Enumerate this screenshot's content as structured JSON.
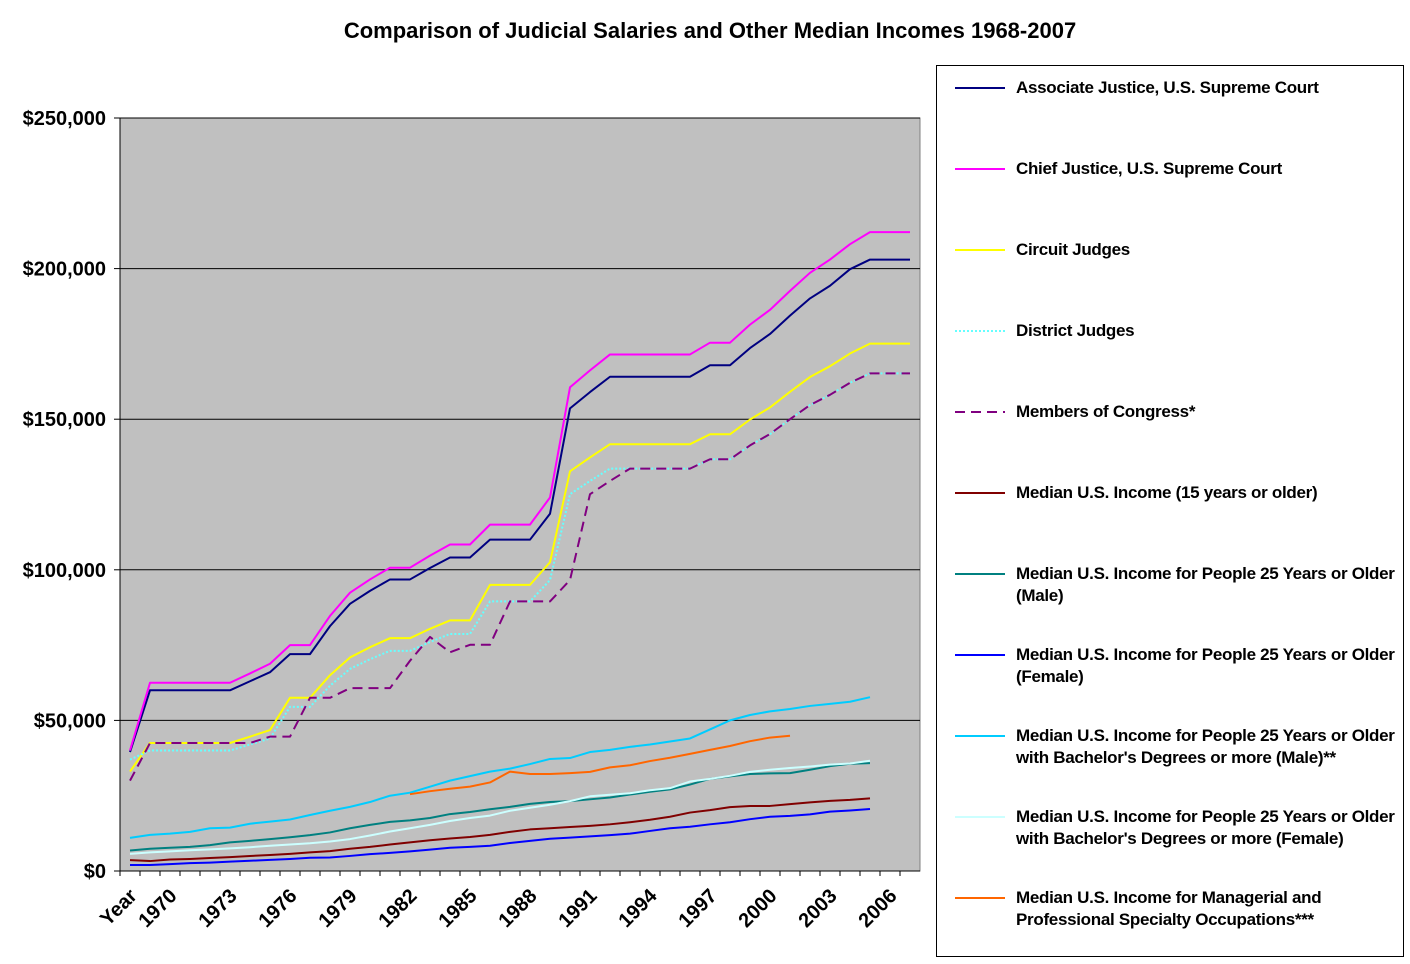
{
  "chart_data": {
    "type": "line",
    "title": "Comparison of Judicial Salaries and Other Median Incomes 1968-2007",
    "categories": [
      "Year",
      null,
      "1970",
      null,
      null,
      "1973",
      null,
      null,
      "1976",
      null,
      null,
      "1979",
      null,
      null,
      "1982",
      null,
      null,
      "1985",
      null,
      null,
      "1988",
      null,
      null,
      "1991",
      null,
      null,
      "1994",
      null,
      null,
      "1997",
      null,
      null,
      "2000",
      null,
      null,
      "2003",
      null,
      null,
      "2006",
      null
    ],
    "ylim": [
      0,
      250000
    ],
    "yticks": [
      {
        "value": 0,
        "label": "$0"
      },
      {
        "value": 50000,
        "label": "$50,000"
      },
      {
        "value": 100000,
        "label": "$100,000"
      },
      {
        "value": 150000,
        "label": "$150,000"
      },
      {
        "value": 200000,
        "label": "$200,000"
      },
      {
        "value": 250000,
        "label": "$250,000"
      }
    ],
    "grid": true,
    "legend": "right",
    "series": [
      {
        "name": "Associate Justice, U.S. Supreme Court",
        "color": "#000080",
        "style": "solid",
        "values": [
          39500,
          60000,
          60000,
          60000,
          60000,
          60000,
          63000,
          66000,
          72000,
          72000,
          81300,
          88700,
          93000,
          96800,
          96800,
          100600,
          104100,
          104100,
          110000,
          110000,
          110000,
          118600,
          153600,
          159000,
          164100,
          164100,
          164100,
          164100,
          164100,
          167900,
          167900,
          173600,
          178300,
          184400,
          190100,
          194300,
          199800,
          203000,
          203000,
          203000
        ]
      },
      {
        "name": "Chief Justice, U.S. Supreme Court",
        "color": "#ff00ff",
        "style": "solid",
        "values": [
          40000,
          62500,
          62500,
          62500,
          62500,
          62500,
          65600,
          68800,
          75000,
          75000,
          84700,
          92400,
          96800,
          100700,
          100700,
          104700,
          108400,
          108400,
          115000,
          115000,
          115000,
          124000,
          160600,
          166200,
          171500,
          171500,
          171500,
          171500,
          171500,
          175400,
          175400,
          181400,
          186300,
          192600,
          198600,
          203000,
          208100,
          212100,
          212100,
          212100
        ]
      },
      {
        "name": "Circuit Judges",
        "color": "#ffff00",
        "style": "solid",
        "values": [
          33000,
          42500,
          42500,
          42500,
          42500,
          42500,
          44600,
          46800,
          57500,
          57500,
          65000,
          70900,
          74300,
          77300,
          77300,
          80400,
          83200,
          83200,
          95000,
          95000,
          95000,
          102500,
          132700,
          137300,
          141700,
          141700,
          141700,
          141700,
          141700,
          145000,
          145000,
          149900,
          153900,
          159100,
          164000,
          167600,
          171800,
          175100,
          175100,
          175100
        ]
      },
      {
        "name": "District Judges",
        "color": "#66ffff",
        "style": "dotted",
        "values": [
          37000,
          40000,
          40000,
          40000,
          40000,
          40000,
          42000,
          44000,
          54500,
          54500,
          61500,
          67100,
          70300,
          73100,
          73100,
          76000,
          78700,
          78700,
          89500,
          89500,
          89500,
          96600,
          125100,
          129500,
          133600,
          133600,
          133600,
          133600,
          133600,
          136700,
          136700,
          141300,
          145000,
          150000,
          154700,
          158100,
          162100,
          165200,
          165200,
          165200
        ]
      },
      {
        "name": "Members of Congress*",
        "color": "#800080",
        "style": "dashed",
        "values": [
          30000,
          42500,
          42500,
          42500,
          42500,
          42500,
          42500,
          44600,
          44600,
          57500,
          57500,
          60700,
          60700,
          60700,
          69800,
          77700,
          72600,
          75100,
          75100,
          89500,
          89500,
          89500,
          96600,
          125100,
          129500,
          133600,
          133600,
          133600,
          133600,
          136700,
          136700,
          141300,
          145100,
          150000,
          154700,
          158100,
          162100,
          165200,
          165200,
          165200
        ]
      },
      {
        "name": "Median U.S. Income (15 years or older)",
        "color": "#800000",
        "style": "solid",
        "values": [
          3600,
          3300,
          3800,
          4000,
          4300,
          4600,
          5000,
          5300,
          5700,
          6200,
          6600,
          7400,
          8000,
          8800,
          9500,
          10200,
          10800,
          11300,
          12000,
          13000,
          13800,
          14200,
          14600,
          15000,
          15500,
          16200,
          17000,
          18000,
          19400,
          20200,
          21200,
          21600,
          21600,
          22200,
          22800,
          23300,
          23600,
          24100,
          null,
          null
        ]
      },
      {
        "name": "Median U.S. Income for People 25 Years or Older (Male)",
        "color": "#008080",
        "style": "solid",
        "values": [
          6800,
          7400,
          7700,
          8000,
          8600,
          9500,
          10000,
          10600,
          11200,
          11900,
          12800,
          14200,
          15300,
          16300,
          16800,
          17600,
          18900,
          19600,
          20500,
          21300,
          22300,
          22900,
          23200,
          23800,
          24400,
          25400,
          26300,
          27100,
          28700,
          30600,
          31400,
          32200,
          32400,
          32500,
          33600,
          34800,
          35600,
          35800,
          null,
          null
        ]
      },
      {
        "name": "Median U.S. Income for People 25 Years or Older (Female)",
        "color": "#0000ff",
        "style": "solid",
        "values": [
          2000,
          2000,
          2300,
          2600,
          2800,
          3100,
          3400,
          3700,
          4000,
          4400,
          4500,
          5000,
          5600,
          6000,
          6500,
          7100,
          7700,
          8000,
          8400,
          9300,
          10000,
          10700,
          11100,
          11500,
          11900,
          12400,
          13300,
          14200,
          14700,
          15500,
          16200,
          17200,
          18000,
          18300,
          18800,
          19700,
          20100,
          20600,
          null,
          null
        ]
      },
      {
        "name": "Median U.S. Income for People 25 Years or Older with Bachelor's Degrees or more (Male)**",
        "color": "#00ccff",
        "style": "solid",
        "values": [
          11000,
          12000,
          12400,
          13000,
          14200,
          14400,
          15700,
          16400,
          17100,
          18600,
          20000,
          21300,
          22900,
          25000,
          26000,
          28000,
          30000,
          31500,
          33000,
          34000,
          35500,
          37200,
          37500,
          39500,
          40200,
          41200,
          42000,
          43000,
          44000,
          47000,
          50000,
          51800,
          53000,
          53800,
          54800,
          55500,
          56200,
          57700,
          null,
          null
        ]
      },
      {
        "name": "Median U.S. Income for People 25 Years or Older with Bachelor's Degrees or more (Female)",
        "color": "#ccffff",
        "style": "solid",
        "values": [
          5700,
          6200,
          6500,
          6900,
          7200,
          7500,
          7900,
          8400,
          8800,
          9200,
          9800,
          10600,
          11800,
          13100,
          14200,
          15300,
          16600,
          17600,
          18400,
          20000,
          21000,
          22000,
          23200,
          24800,
          25300,
          25800,
          26800,
          27500,
          29700,
          30600,
          31600,
          32900,
          33600,
          34200,
          34700,
          35300,
          35700,
          36600,
          null,
          null
        ]
      },
      {
        "name": "Median U.S. Income for Managerial and Professional Specialty Occupations***",
        "color": "#ff6600",
        "style": "solid",
        "values": [
          null,
          null,
          null,
          null,
          null,
          null,
          null,
          null,
          null,
          null,
          null,
          null,
          null,
          null,
          25500,
          26500,
          27300,
          28000,
          29400,
          33000,
          32200,
          32200,
          32500,
          32900,
          34400,
          35100,
          36500,
          37600,
          38900,
          40200,
          41500,
          43100,
          44300,
          44900,
          null,
          null,
          null,
          null,
          null,
          null
        ]
      }
    ]
  }
}
